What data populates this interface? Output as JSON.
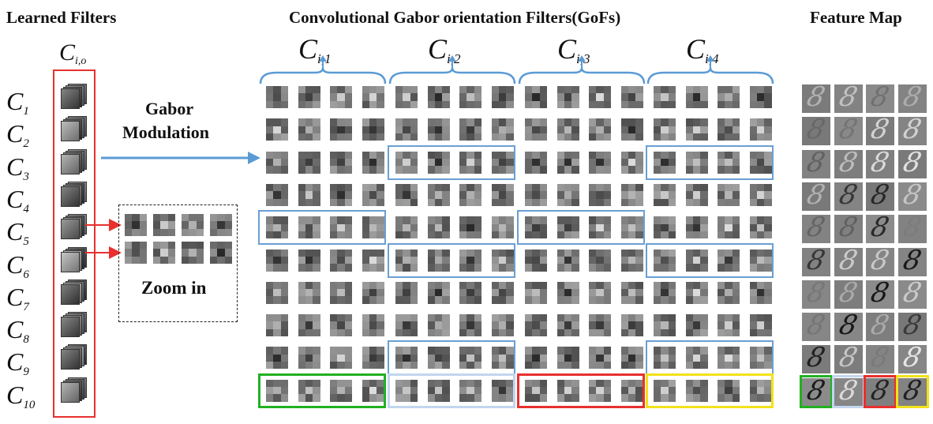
{
  "headers": {
    "learned": "Learned Filters",
    "gofs": "Convolutional Gabor orientation Filters(GoFs)",
    "feature": "Feature Map"
  },
  "cio": {
    "base": "C",
    "sub": "i,o"
  },
  "rows": [
    {
      "base": "C",
      "sub": "1"
    },
    {
      "base": "C",
      "sub": "2"
    },
    {
      "base": "C",
      "sub": "3"
    },
    {
      "base": "C",
      "sub": "4"
    },
    {
      "base": "C",
      "sub": "5"
    },
    {
      "base": "C",
      "sub": "6"
    },
    {
      "base": "C",
      "sub": "7"
    },
    {
      "base": "C",
      "sub": "8"
    },
    {
      "base": "C",
      "sub": "9"
    },
    {
      "base": "C",
      "sub": "10"
    }
  ],
  "groups": [
    {
      "base": "C",
      "sub": "i,1"
    },
    {
      "base": "C",
      "sub": "i,2"
    },
    {
      "base": "C",
      "sub": "i,3"
    },
    {
      "base": "C",
      "sub": "i,4"
    }
  ],
  "gabor_label_1": "Gabor",
  "gabor_label_2": "Modulation",
  "zoom_label": "Zoom in",
  "feature_glyph": "8",
  "colors": {
    "red": "#e8302e",
    "blue": "#6a9fd4",
    "green": "#22b022",
    "yellow": "#f2e21a",
    "lightblue": "#c2d6ee"
  }
}
